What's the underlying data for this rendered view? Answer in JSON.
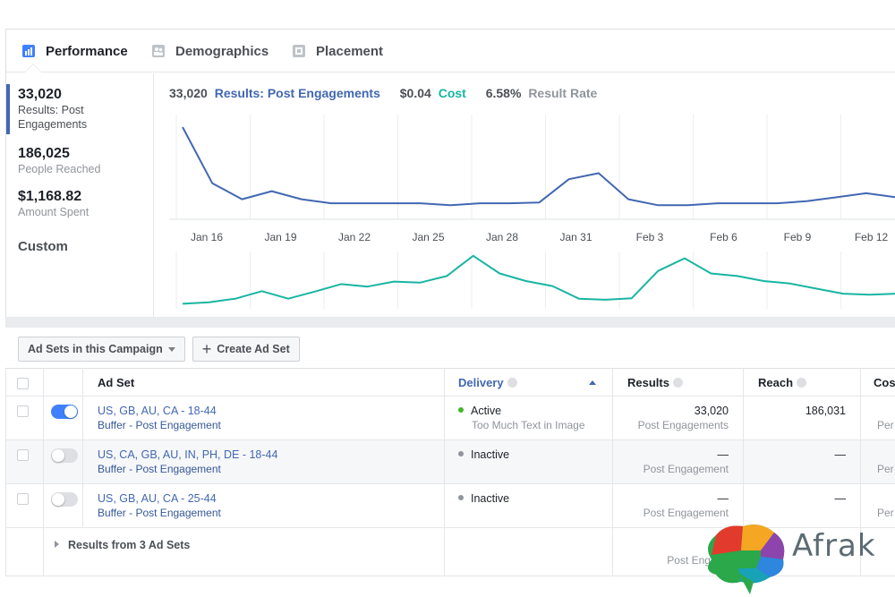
{
  "tabs": [
    {
      "label": "Performance",
      "icon": "bar-chart-icon",
      "active": true
    },
    {
      "label": "Demographics",
      "icon": "people-icon",
      "active": false
    },
    {
      "label": "Placement",
      "icon": "placement-icon",
      "active": false
    }
  ],
  "metrics": {
    "results": {
      "value": "33,020",
      "label_line1": "Results: Post",
      "label_line2": "Engagements"
    },
    "reach": {
      "value": "186,025",
      "label": "People Reached"
    },
    "spent": {
      "value": "$1,168.82",
      "label": "Amount Spent"
    },
    "custom_label": "Custom"
  },
  "summary": {
    "results_value": "33,020",
    "results_label": "Results: Post Engagements",
    "cost_value": "$0.04",
    "cost_label": "Cost",
    "rate_value": "6.58%",
    "rate_label": "Result Rate"
  },
  "chart_data": [
    {
      "type": "line",
      "series": [
        {
          "values": [
            33,
            19,
            15,
            17,
            15,
            14,
            14,
            14,
            14,
            13.5,
            14,
            14,
            14.2,
            20,
            21.5,
            15,
            13.5,
            13.5,
            14,
            14,
            14,
            14.5,
            15.5,
            16.5,
            15.5
          ]
        }
      ],
      "x_tick_labels": [
        "Jan 16",
        "Jan 19",
        "Jan 22",
        "Jan 25",
        "Jan 28",
        "Jan 31",
        "Feb 3",
        "Feb 6",
        "Feb 9",
        "Feb 12"
      ],
      "color": "#4267b2",
      "grid": true
    },
    {
      "type": "line",
      "series": [
        {
          "values": [
            4,
            4.3,
            5,
            6.5,
            5,
            6.4,
            7.9,
            7.4,
            8.4,
            8.2,
            9.5,
            13.5,
            10,
            8.5,
            7.5,
            5,
            4.8,
            5.1,
            10.5,
            13,
            10,
            9.5,
            8.5,
            8,
            7,
            6,
            5.8,
            6
          ]
        }
      ],
      "color": "#18b5a1",
      "grid": true
    }
  ],
  "toolbar": {
    "adsets_label": "Ad Sets in this Campaign",
    "create_label": "Create Ad Set"
  },
  "table": {
    "headers": {
      "adset": "Ad Set",
      "delivery": "Delivery",
      "results": "Results",
      "reach": "Reach",
      "cost": "Cos"
    },
    "rows": [
      {
        "name": "US, GB, AU, CA - 18-44",
        "sub": "Buffer - Post Engagement",
        "delivery": "Active",
        "delivery_sub": "Too Much Text in Image",
        "results": "33,020",
        "results_sub": "Post Engagements",
        "reach": "186,031",
        "cost_sub": "Per",
        "on": true,
        "dot_color": "#42b72a"
      },
      {
        "name": "US, CA, GB, AU, IN, PH, DE - 18-44",
        "sub": "Buffer - Post Engagement",
        "delivery": "Inactive",
        "delivery_sub": "",
        "results": "—",
        "results_sub": "Post Engagement",
        "reach": "—",
        "cost_sub": "Per",
        "on": false,
        "dot_color": "#90949c"
      },
      {
        "name": "US, GB, AU, CA - 25-44",
        "sub": "Buffer - Post Engagement",
        "delivery": "Inactive",
        "delivery_sub": "",
        "results": "—",
        "results_sub": "Post Engagement",
        "reach": "—",
        "cost_sub": "Per",
        "on": false,
        "dot_color": "#90949c"
      }
    ],
    "footer": {
      "label": "Results from 3 Ad Sets",
      "results": "33",
      "results_sub": "Post Engage"
    }
  },
  "watermark": {
    "text": "Afrak"
  }
}
